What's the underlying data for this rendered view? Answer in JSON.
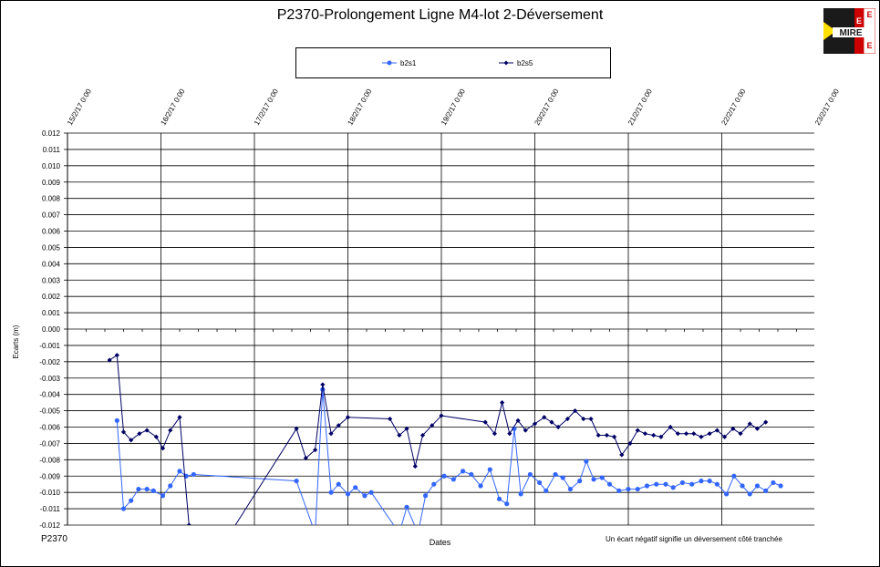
{
  "chart_data": {
    "type": "line",
    "title": "P2370-Prolongement Ligne M4-lot 2-Déversement",
    "xlabel": "Dates",
    "ylabel": "Ecarts (m)",
    "footnote": "Un écart négatif signifie  un déversement côté  tranchée",
    "code": "P2370",
    "xticks": [
      "15/2/17 0:00",
      "16/2/17 0:00",
      "17/2/17 0:00",
      "18/2/17 0:00",
      "19/2/17 0:00",
      "20/2/17 0:00",
      "21/2/17 0:00",
      "22/2/17 0:00",
      "23/2/17 0:00"
    ],
    "yticks": [
      "0.012",
      "0.011",
      "0.010",
      "0.009",
      "0.008",
      "0.007",
      "0.006",
      "0.005",
      "0.004",
      "0.003",
      "0.002",
      "0.001",
      "0.000",
      "-0.001",
      "-0.002",
      "-0.003",
      "-0.004",
      "-0.005",
      "-0.006",
      "-0.007",
      "-0.008",
      "-0.009",
      "-0.010",
      "-0.011",
      "-0.012"
    ],
    "ylim": [
      -0.012,
      0.012
    ],
    "xlim": [
      0,
      8
    ],
    "x_unit": "days since 15/2/17 0:00",
    "legend_position": "top-center",
    "grid": true,
    "series": [
      {
        "name": "b2s1",
        "color": "#3366ff",
        "marker": "circle",
        "points": [
          [
            0.53,
            -0.0056
          ],
          [
            0.6,
            -0.011
          ],
          [
            0.68,
            -0.0105
          ],
          [
            0.76,
            -0.0098
          ],
          [
            0.85,
            -0.0098
          ],
          [
            0.92,
            -0.0099
          ],
          [
            1.02,
            -0.0102
          ],
          [
            1.1,
            -0.0096
          ],
          [
            1.2,
            -0.0087
          ],
          [
            1.27,
            -0.009
          ],
          [
            1.35,
            -0.0089
          ],
          [
            2.45,
            -0.0093
          ],
          [
            2.65,
            -0.0125
          ],
          [
            2.73,
            -0.0037
          ],
          [
            2.82,
            -0.01
          ],
          [
            2.9,
            -0.0095
          ],
          [
            3.0,
            -0.0101
          ],
          [
            3.08,
            -0.0097
          ],
          [
            3.18,
            -0.0102
          ],
          [
            3.25,
            -0.01
          ],
          [
            3.55,
            -0.0125
          ],
          [
            3.63,
            -0.0109
          ],
          [
            3.75,
            -0.0125
          ],
          [
            3.83,
            -0.0102
          ],
          [
            3.92,
            -0.0095
          ],
          [
            4.03,
            -0.009
          ],
          [
            4.13,
            -0.0092
          ],
          [
            4.23,
            -0.0087
          ],
          [
            4.32,
            -0.0089
          ],
          [
            4.42,
            -0.0096
          ],
          [
            4.52,
            -0.0086
          ],
          [
            4.62,
            -0.0104
          ],
          [
            4.7,
            -0.0107
          ],
          [
            4.78,
            -0.0061
          ],
          [
            4.85,
            -0.0101
          ],
          [
            4.95,
            -0.0089
          ],
          [
            5.05,
            -0.0094
          ],
          [
            5.12,
            -0.0099
          ],
          [
            5.22,
            -0.0089
          ],
          [
            5.3,
            -0.0091
          ],
          [
            5.38,
            -0.0098
          ],
          [
            5.48,
            -0.0093
          ],
          [
            5.55,
            -0.0081
          ],
          [
            5.63,
            -0.0092
          ],
          [
            5.72,
            -0.0091
          ],
          [
            5.8,
            -0.0095
          ],
          [
            5.9,
            -0.0099
          ],
          [
            6.0,
            -0.0098
          ],
          [
            6.1,
            -0.0098
          ],
          [
            6.2,
            -0.0096
          ],
          [
            6.3,
            -0.0095
          ],
          [
            6.4,
            -0.0095
          ],
          [
            6.48,
            -0.0097
          ],
          [
            6.58,
            -0.0094
          ],
          [
            6.68,
            -0.0095
          ],
          [
            6.78,
            -0.0093
          ],
          [
            6.87,
            -0.0093
          ],
          [
            6.95,
            -0.0095
          ],
          [
            7.05,
            -0.0101
          ],
          [
            7.13,
            -0.009
          ],
          [
            7.22,
            -0.0096
          ],
          [
            7.3,
            -0.0101
          ],
          [
            7.38,
            -0.0096
          ],
          [
            7.47,
            -0.0099
          ],
          [
            7.55,
            -0.0094
          ],
          [
            7.63,
            -0.0096
          ]
        ]
      },
      {
        "name": "b2s5",
        "color": "#000066",
        "marker": "diamond",
        "points": [
          [
            0.45,
            -0.0019
          ],
          [
            0.53,
            -0.0016
          ],
          [
            0.6,
            -0.0063
          ],
          [
            0.68,
            -0.0068
          ],
          [
            0.77,
            -0.0064
          ],
          [
            0.85,
            -0.0062
          ],
          [
            0.95,
            -0.0066
          ],
          [
            1.02,
            -0.0073
          ],
          [
            1.1,
            -0.0062
          ],
          [
            1.2,
            -0.0054
          ],
          [
            1.3,
            -0.012
          ],
          [
            1.63,
            -0.0135
          ],
          [
            2.45,
            -0.0061
          ],
          [
            2.55,
            -0.0079
          ],
          [
            2.65,
            -0.0074
          ],
          [
            2.73,
            -0.0034
          ],
          [
            2.82,
            -0.0064
          ],
          [
            2.9,
            -0.0059
          ],
          [
            3.0,
            -0.0054
          ],
          [
            3.45,
            -0.0055
          ],
          [
            3.55,
            -0.0065
          ],
          [
            3.63,
            -0.0061
          ],
          [
            3.72,
            -0.0084
          ],
          [
            3.8,
            -0.0065
          ],
          [
            3.9,
            -0.0059
          ],
          [
            4.0,
            -0.0053
          ],
          [
            4.47,
            -0.0057
          ],
          [
            4.57,
            -0.0064
          ],
          [
            4.65,
            -0.0045
          ],
          [
            4.73,
            -0.0064
          ],
          [
            4.82,
            -0.0056
          ],
          [
            4.9,
            -0.0062
          ],
          [
            5.0,
            -0.0058
          ],
          [
            5.1,
            -0.0054
          ],
          [
            5.18,
            -0.0057
          ],
          [
            5.25,
            -0.006
          ],
          [
            5.35,
            -0.0055
          ],
          [
            5.43,
            -0.005
          ],
          [
            5.52,
            -0.0055
          ],
          [
            5.6,
            -0.0055
          ],
          [
            5.68,
            -0.0065
          ],
          [
            5.77,
            -0.0065
          ],
          [
            5.85,
            -0.0066
          ],
          [
            5.93,
            -0.0077
          ],
          [
            6.02,
            -0.007
          ],
          [
            6.1,
            -0.0062
          ],
          [
            6.18,
            -0.0064
          ],
          [
            6.27,
            -0.0065
          ],
          [
            6.35,
            -0.0066
          ],
          [
            6.45,
            -0.006
          ],
          [
            6.53,
            -0.0064
          ],
          [
            6.62,
            -0.0064
          ],
          [
            6.7,
            -0.0064
          ],
          [
            6.78,
            -0.0066
          ],
          [
            6.87,
            -0.0064
          ],
          [
            6.95,
            -0.0062
          ],
          [
            7.03,
            -0.0066
          ],
          [
            7.12,
            -0.0061
          ],
          [
            7.2,
            -0.0064
          ],
          [
            7.3,
            -0.0058
          ],
          [
            7.38,
            -0.0061
          ],
          [
            7.47,
            -0.0057
          ]
        ]
      }
    ]
  },
  "logo": {
    "text": "MIRE",
    "letters": [
      "E",
      "E",
      "E"
    ],
    "colors": {
      "red": "#cc0000",
      "dark": "#1a1a1a",
      "yellow": "#ffe000"
    }
  }
}
